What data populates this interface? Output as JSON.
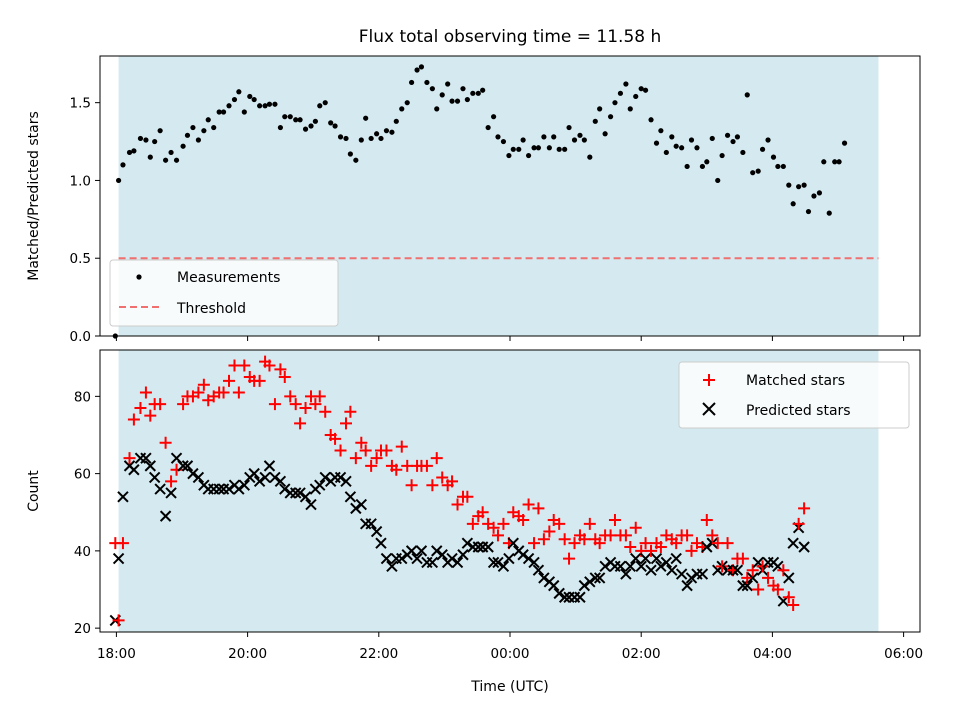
{
  "chart_data": [
    {
      "type": "scatter",
      "title": "Flux total observing time = 11.58 h",
      "xlabel": "",
      "ylabel": "Matched/Predicted stars",
      "xlim": [
        "17:45",
        "06:15"
      ],
      "ylim": [
        0,
        1.8
      ],
      "y_ticks": [
        "0.0",
        "0.5",
        "1.0",
        "1.5"
      ],
      "x_ticks": [
        "18:00",
        "20:00",
        "22:00",
        "00:00",
        "02:00",
        "04:00",
        "06:00"
      ],
      "observing_window": [
        "18:02",
        "05:37"
      ],
      "shade_color": "#d4eaf0",
      "legend_position": "lower-left",
      "series": [
        {
          "name": "Measurements",
          "color": "#000000",
          "marker": "dot",
          "points": [
            [
              "17:59",
              0.0
            ],
            [
              "18:02",
              1.0
            ],
            [
              "18:06",
              1.1
            ],
            [
              "18:12",
              1.18
            ],
            [
              "18:16",
              1.19
            ],
            [
              "18:22",
              1.27
            ],
            [
              "18:27",
              1.26
            ],
            [
              "18:31",
              1.15
            ],
            [
              "18:35",
              1.25
            ],
            [
              "18:40",
              1.32
            ],
            [
              "18:45",
              1.13
            ],
            [
              "18:50",
              1.18
            ],
            [
              "18:55",
              1.13
            ],
            [
              "19:01",
              1.22
            ],
            [
              "19:05",
              1.29
            ],
            [
              "19:10",
              1.34
            ],
            [
              "19:15",
              1.26
            ],
            [
              "19:20",
              1.32
            ],
            [
              "19:24",
              1.39
            ],
            [
              "19:29",
              1.34
            ],
            [
              "19:34",
              1.44
            ],
            [
              "19:38",
              1.44
            ],
            [
              "19:43",
              1.48
            ],
            [
              "19:48",
              1.52
            ],
            [
              "19:52",
              1.57
            ],
            [
              "19:57",
              1.44
            ],
            [
              "20:02",
              1.54
            ],
            [
              "20:06",
              1.52
            ],
            [
              "20:11",
              1.48
            ],
            [
              "20:16",
              1.48
            ],
            [
              "20:20",
              1.49
            ],
            [
              "20:25",
              1.49
            ],
            [
              "20:30",
              1.34
            ],
            [
              "20:34",
              1.41
            ],
            [
              "20:39",
              1.41
            ],
            [
              "20:44",
              1.39
            ],
            [
              "20:48",
              1.39
            ],
            [
              "20:53",
              1.33
            ],
            [
              "20:58",
              1.35
            ],
            [
              "21:02",
              1.38
            ],
            [
              "21:06",
              1.48
            ],
            [
              "21:11",
              1.5
            ],
            [
              "21:16",
              1.37
            ],
            [
              "21:20",
              1.35
            ],
            [
              "21:25",
              1.28
            ],
            [
              "21:30",
              1.27
            ],
            [
              "21:34",
              1.17
            ],
            [
              "21:39",
              1.13
            ],
            [
              "21:44",
              1.26
            ],
            [
              "21:48",
              1.4
            ],
            [
              "21:53",
              1.27
            ],
            [
              "21:58",
              1.3
            ],
            [
              "22:02",
              1.27
            ],
            [
              "22:07",
              1.32
            ],
            [
              "22:12",
              1.31
            ],
            [
              "22:16",
              1.38
            ],
            [
              "22:21",
              1.46
            ],
            [
              "22:26",
              1.5
            ],
            [
              "22:30",
              1.63
            ],
            [
              "22:35",
              1.71
            ],
            [
              "22:39",
              1.73
            ],
            [
              "22:44",
              1.63
            ],
            [
              "22:49",
              1.59
            ],
            [
              "22:53",
              1.46
            ],
            [
              "22:58",
              1.55
            ],
            [
              "23:03",
              1.62
            ],
            [
              "23:07",
              1.51
            ],
            [
              "23:12",
              1.51
            ],
            [
              "23:17",
              1.59
            ],
            [
              "23:21",
              1.52
            ],
            [
              "23:26",
              1.56
            ],
            [
              "23:31",
              1.56
            ],
            [
              "23:35",
              1.58
            ],
            [
              "23:40",
              1.34
            ],
            [
              "23:45",
              1.41
            ],
            [
              "23:49",
              1.28
            ],
            [
              "23:54",
              1.25
            ],
            [
              "23:59",
              1.16
            ],
            [
              "00:03",
              1.2
            ],
            [
              "00:08",
              1.2
            ],
            [
              "00:12",
              1.26
            ],
            [
              "00:17",
              1.16
            ],
            [
              "00:22",
              1.21
            ],
            [
              "00:26",
              1.21
            ],
            [
              "00:31",
              1.28
            ],
            [
              "00:36",
              1.21
            ],
            [
              "00:40",
              1.28
            ],
            [
              "00:45",
              1.2
            ],
            [
              "00:50",
              1.2
            ],
            [
              "00:54",
              1.34
            ],
            [
              "00:59",
              1.26
            ],
            [
              "01:04",
              1.29
            ],
            [
              "01:08",
              1.26
            ],
            [
              "01:13",
              1.15
            ],
            [
              "01:18",
              1.38
            ],
            [
              "01:22",
              1.46
            ],
            [
              "01:27",
              1.3
            ],
            [
              "01:32",
              1.41
            ],
            [
              "01:36",
              1.5
            ],
            [
              "01:41",
              1.56
            ],
            [
              "01:46",
              1.62
            ],
            [
              "01:50",
              1.46
            ],
            [
              "01:55",
              1.54
            ],
            [
              "02:00",
              1.59
            ],
            [
              "02:04",
              1.58
            ],
            [
              "02:09",
              1.39
            ],
            [
              "02:14",
              1.24
            ],
            [
              "02:18",
              1.32
            ],
            [
              "02:23",
              1.18
            ],
            [
              "02:28",
              1.28
            ],
            [
              "02:32",
              1.22
            ],
            [
              "02:37",
              1.21
            ],
            [
              "02:42",
              1.09
            ],
            [
              "02:46",
              1.26
            ],
            [
              "02:51",
              1.21
            ],
            [
              "02:56",
              1.09
            ],
            [
              "03:00",
              1.12
            ],
            [
              "03:05",
              1.27
            ],
            [
              "03:10",
              1.0
            ],
            [
              "03:14",
              1.16
            ],
            [
              "03:19",
              1.29
            ],
            [
              "03:24",
              1.25
            ],
            [
              "03:28",
              1.28
            ],
            [
              "03:33",
              1.18
            ],
            [
              "03:37",
              1.55
            ],
            [
              "03:42",
              1.05
            ],
            [
              "03:47",
              1.06
            ],
            [
              "03:51",
              1.2
            ],
            [
              "03:56",
              1.26
            ],
            [
              "04:01",
              1.15
            ],
            [
              "04:05",
              1.09
            ],
            [
              "04:10",
              1.09
            ],
            [
              "04:15",
              0.97
            ],
            [
              "04:19",
              0.85
            ],
            [
              "04:24",
              0.96
            ],
            [
              "04:29",
              0.97
            ],
            [
              "04:33",
              0.8
            ],
            [
              "04:38",
              0.9
            ],
            [
              "04:43",
              0.92
            ],
            [
              "04:47",
              1.12
            ],
            [
              "04:52",
              0.79
            ],
            [
              "04:57",
              1.12
            ],
            [
              "05:01",
              1.12
            ],
            [
              "05:06",
              1.24
            ]
          ]
        },
        {
          "name": "Threshold",
          "color": "#f07070",
          "line_style": "dashed",
          "points": [
            [
              "18:02",
              0.5
            ],
            [
              "05:37",
              0.5
            ]
          ]
        }
      ]
    },
    {
      "type": "scatter",
      "title": "",
      "xlabel": "Time (UTC)",
      "ylabel": "Count",
      "xlim": [
        "17:45",
        "06:15"
      ],
      "ylim": [
        19,
        92
      ],
      "y_ticks": [
        "20",
        "40",
        "60",
        "80"
      ],
      "x_ticks": [
        "18:00",
        "20:00",
        "22:00",
        "00:00",
        "02:00",
        "04:00",
        "06:00"
      ],
      "observing_window": [
        "18:02",
        "05:37"
      ],
      "shade_color": "#d4eaf0",
      "legend_position": "upper-right",
      "series": [
        {
          "name": "Matched stars",
          "color": "#ff0000",
          "marker": "plus",
          "values": [
            42,
            22,
            42,
            64,
            74,
            77,
            81,
            75,
            78,
            78,
            68,
            58,
            61,
            78,
            80,
            80,
            81,
            83,
            79,
            80,
            81,
            81,
            84,
            88,
            81,
            88,
            85,
            84,
            84,
            89,
            88,
            78,
            87,
            85,
            80,
            78,
            73,
            77,
            80,
            78,
            80,
            76,
            70,
            69,
            66,
            73,
            76,
            64,
            68,
            66,
            62,
            64,
            66,
            66,
            62,
            61,
            67,
            62,
            57,
            62,
            62,
            62,
            57,
            64,
            59,
            57,
            58,
            52,
            54,
            54,
            47,
            49,
            50,
            47,
            46,
            44,
            47,
            42,
            50,
            49,
            48,
            52,
            42,
            51,
            43,
            45,
            48,
            47,
            43,
            38,
            42,
            44,
            43,
            47,
            43,
            42,
            44,
            44,
            48,
            44,
            44,
            41,
            46,
            40,
            42,
            40,
            42,
            41,
            44,
            43,
            42,
            44,
            44,
            40,
            42,
            41,
            48,
            44,
            42,
            36,
            42,
            35,
            38,
            38,
            33,
            35,
            30,
            36,
            33,
            31,
            30,
            35,
            28,
            26,
            47,
            51
          ]
        },
        {
          "name": "Predicted stars",
          "color": "#000000",
          "marker": "x",
          "values": [
            22,
            38,
            54,
            62,
            61,
            64,
            64,
            62,
            59,
            56,
            49,
            55,
            64,
            62,
            62,
            60,
            59,
            57,
            56,
            56,
            56,
            56,
            56,
            57,
            56,
            57,
            59,
            60,
            58,
            59,
            62,
            59,
            58,
            56,
            55,
            55,
            55,
            54,
            52,
            56,
            57,
            59,
            58,
            59,
            59,
            58,
            54,
            51,
            52,
            47,
            47,
            45,
            42,
            38,
            36,
            38,
            38,
            39,
            40,
            38,
            40,
            37,
            37,
            40,
            39,
            37,
            38,
            37,
            39,
            42,
            41,
            41,
            41,
            41,
            37,
            37,
            36,
            38,
            42,
            40,
            39,
            38,
            37,
            35,
            33,
            32,
            31,
            29,
            28,
            28,
            28,
            28,
            31,
            32,
            33,
            33,
            36,
            37,
            36,
            36,
            34,
            36,
            38,
            36,
            38,
            35,
            38,
            36,
            37,
            35,
            38,
            34,
            31,
            33,
            34,
            34,
            41,
            42,
            35,
            36,
            35,
            35,
            35,
            31,
            31,
            33,
            37,
            35,
            37,
            37,
            36,
            27,
            33,
            42,
            46,
            41
          ]
        }
      ]
    }
  ]
}
